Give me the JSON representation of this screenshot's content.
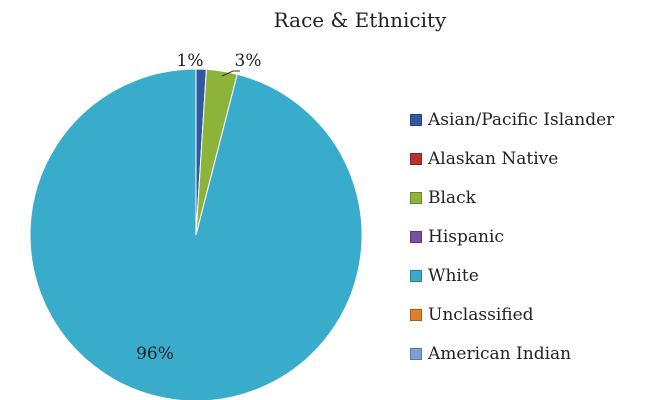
{
  "chart_data": {
    "type": "pie",
    "title": "Race & Ethnicity",
    "categories": [
      "Asian/Pacific Islander",
      "Alaskan Native",
      "Black",
      "Hispanic",
      "White",
      "Unclassified",
      "American Indian"
    ],
    "values": [
      1,
      0,
      3,
      0,
      96,
      0,
      0
    ],
    "data_labels": [
      "1%",
      "",
      "3%",
      "",
      "96%",
      "",
      ""
    ],
    "colors": [
      "#2f5aa0",
      "#b7322e",
      "#8db33a",
      "#7a4ea0",
      "#3aaccb",
      "#e07f24",
      "#7b9ed8"
    ],
    "legend": "right"
  }
}
